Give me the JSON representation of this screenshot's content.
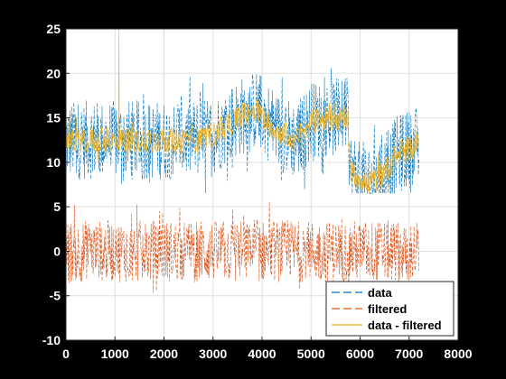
{
  "window": {
    "background": "#000000"
  },
  "chart_data": {
    "type": "line",
    "title": "",
    "xlabel": "",
    "ylabel": "",
    "xlim": [
      0,
      8000
    ],
    "ylim": [
      -10,
      25
    ],
    "xticks": [
      "0",
      "1000",
      "2000",
      "3000",
      "4000",
      "5000",
      "6000",
      "7000",
      "8000"
    ],
    "yticks": [
      "25",
      "20",
      "15",
      "10",
      "5",
      "0",
      "-5",
      "-10"
    ],
    "grid": true,
    "legend_position": "bottom-right",
    "n_samples": 7200,
    "x_range": [
      0,
      7200
    ],
    "series": [
      {
        "name": "data",
        "color": "#0072BD",
        "linestyle": "dashed",
        "trend_x": [
          0,
          500,
          1000,
          1500,
          2000,
          2500,
          3000,
          3500,
          3900,
          4300,
          4700,
          5000,
          5300,
          5750,
          5800,
          6200,
          6500,
          6800,
          7200
        ],
        "trend_y": [
          12.5,
          12.5,
          12.5,
          12.5,
          12.5,
          12.5,
          13,
          15,
          16,
          13.5,
          12.5,
          14.5,
          15,
          15,
          9,
          7.5,
          9,
          11,
          12
        ],
        "spread": 9,
        "range": [
          6.5,
          21.5
        ]
      },
      {
        "name": "filtered",
        "color": "#D95319",
        "linestyle": "dashed",
        "trend_x": [
          0,
          7200
        ],
        "trend_y": [
          0,
          0
        ],
        "spread": 7,
        "range": [
          -6.5,
          7
        ]
      },
      {
        "name": "data - filtered",
        "color": "#EDB120",
        "linestyle": "solid",
        "trend_x": [
          0,
          500,
          1000,
          1500,
          2000,
          2500,
          3000,
          3500,
          3900,
          4300,
          4700,
          5000,
          5300,
          5750,
          5800,
          6200,
          6500,
          6800,
          7200
        ],
        "trend_y": [
          12.5,
          12.5,
          12.5,
          12.5,
          12.5,
          12.5,
          13,
          15,
          16,
          13.5,
          12.5,
          14.5,
          15,
          15,
          9,
          7.5,
          9,
          11,
          12
        ],
        "spread": 3,
        "range": [
          6.5,
          25
        ],
        "spike_x": 1080,
        "spike_y": 25
      }
    ]
  }
}
